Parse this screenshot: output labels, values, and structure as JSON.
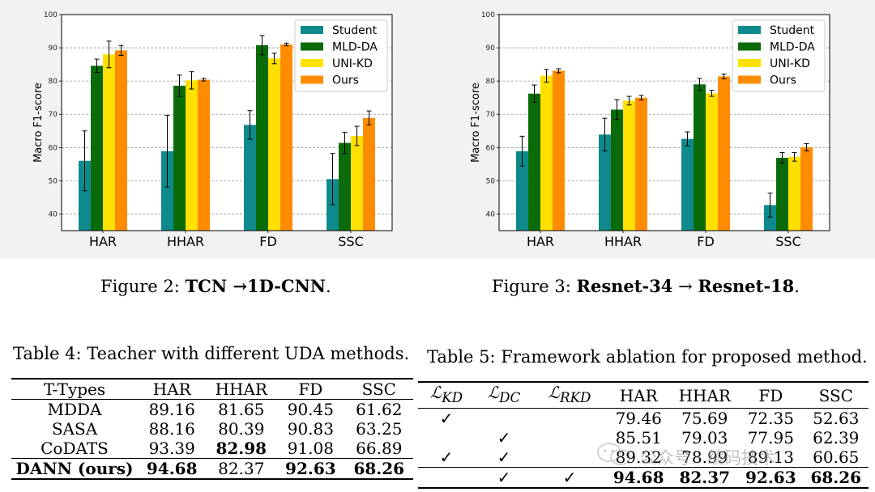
{
  "chart_data": [
    {
      "type": "bar",
      "id": "fig2",
      "title": "",
      "xlabel": "",
      "ylabel": "Macro F1-score",
      "ylim": [
        35,
        100
      ],
      "yticks": [
        40,
        50,
        60,
        70,
        80,
        90,
        100
      ],
      "grid": "y-dashed",
      "legend": "top-right",
      "categories": [
        "HAR",
        "HHAR",
        "FD",
        "SSC"
      ],
      "series": [
        {
          "name": "Student",
          "color": "#0e8a8c",
          "values": [
            56.0,
            58.9,
            66.8,
            50.5
          ],
          "errors": [
            9.0,
            10.8,
            4.3,
            7.7
          ]
        },
        {
          "name": "MLD-DA",
          "color": "#0b6b0b",
          "values": [
            84.6,
            78.6,
            90.8,
            61.4
          ],
          "errors": [
            2.0,
            3.2,
            2.9,
            3.2
          ]
        },
        {
          "name": "UNI-KD",
          "color": "#ffe000",
          "values": [
            88.0,
            80.2,
            86.8,
            63.5
          ],
          "errors": [
            4.0,
            2.6,
            1.6,
            2.9
          ]
        },
        {
          "name": "Ours",
          "color": "#ff8c00",
          "values": [
            89.2,
            80.4,
            91.0,
            68.9
          ],
          "errors": [
            1.5,
            0.4,
            0.4,
            2.1
          ]
        }
      ]
    },
    {
      "type": "bar",
      "id": "fig3",
      "title": "",
      "xlabel": "",
      "ylabel": "Macro F1-score",
      "ylim": [
        35,
        100
      ],
      "yticks": [
        40,
        50,
        60,
        70,
        80,
        90,
        100
      ],
      "grid": "y-dashed",
      "legend": "top-right",
      "categories": [
        "HAR",
        "HHAR",
        "FD",
        "SSC"
      ],
      "series": [
        {
          "name": "Student",
          "color": "#0e8a8c",
          "values": [
            58.9,
            63.9,
            62.6,
            42.7
          ],
          "errors": [
            4.5,
            4.9,
            2.1,
            3.6
          ]
        },
        {
          "name": "MLD-DA",
          "color": "#0b6b0b",
          "values": [
            76.2,
            71.4,
            79.0,
            56.9
          ],
          "errors": [
            2.6,
            3.0,
            1.8,
            1.6
          ]
        },
        {
          "name": "UNI-KD",
          "color": "#ffe000",
          "values": [
            81.6,
            74.1,
            76.3,
            57.2
          ],
          "errors": [
            1.9,
            1.3,
            0.9,
            1.3
          ]
        },
        {
          "name": "Ours",
          "color": "#ff8c00",
          "values": [
            83.1,
            75.0,
            81.4,
            60.1
          ],
          "errors": [
            0.6,
            0.7,
            0.7,
            1.1
          ]
        }
      ]
    }
  ],
  "figure2": {
    "prefix": "Figure 2: ",
    "bold_text": "TCN →1D-CNN",
    "suffix": "."
  },
  "figure3": {
    "prefix": "Figure 3: ",
    "bold_text_a": "Resnet-34",
    "arrow": " → ",
    "bold_text_b": "Resnet-18",
    "suffix": "."
  },
  "table4": {
    "caption": "Table 4: Teacher with different UDA methods.",
    "headers": [
      "T-Types",
      "HAR",
      "HHAR",
      "FD",
      "SSC"
    ],
    "rows": [
      [
        "MDDA",
        "89.16",
        "81.65",
        "90.45",
        "61.62"
      ],
      [
        "SASA",
        "88.16",
        "80.39",
        "90.83",
        "63.25"
      ],
      [
        "CoDATS",
        "93.39",
        "82.98",
        "91.08",
        "66.89"
      ],
      [
        "DANN (ours)",
        "94.68",
        "82.37",
        "92.63",
        "68.26"
      ]
    ]
  },
  "table5": {
    "caption": "Table 5: Framework ablation for proposed method.",
    "loss_symbol": "ℒ",
    "loss_subs": [
      "KD",
      "DC",
      "RKD"
    ],
    "headers": [
      "HAR",
      "HHAR",
      "FD",
      "SSC"
    ],
    "rows": [
      [
        "✓",
        "",
        "",
        "79.46",
        "75.69",
        "72.35",
        "52.63"
      ],
      [
        "",
        "✓",
        "",
        "85.51",
        "79.03",
        "77.95",
        "62.39"
      ],
      [
        "✓",
        "✓",
        "",
        "89.32",
        "78.99",
        "89.13",
        "60.65"
      ],
      [
        "",
        "✓",
        "✓",
        "94.68",
        "82.37",
        "92.63",
        "68.26"
      ]
    ]
  },
  "watermark": {
    "text": "公众号 · 编码技术"
  }
}
